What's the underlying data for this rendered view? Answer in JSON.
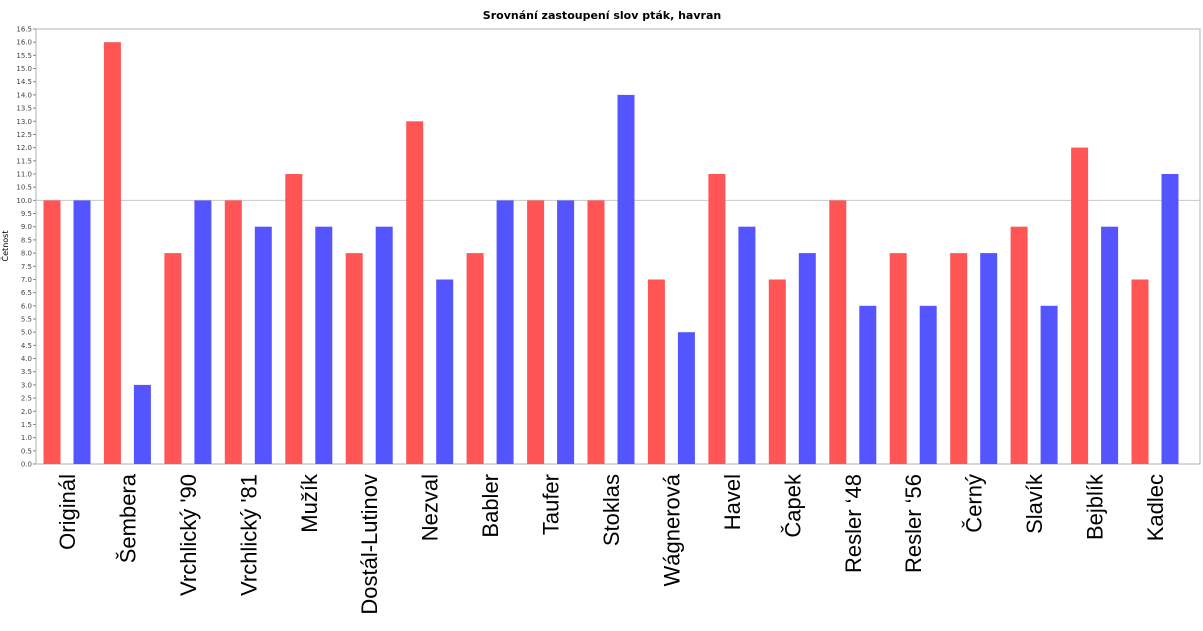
{
  "chart_data": {
    "type": "bar",
    "title": "Srovnání zastoupení slov pták, havran",
    "ylabel": "Četnost",
    "xlabel": "",
    "ylim": [
      0,
      16.5
    ],
    "ytick_step": 0.5,
    "reference_line": 10,
    "grid": false,
    "colors": {
      "ptak": "#ff5555",
      "havran": "#5555ff"
    },
    "categories": [
      "Originál",
      "Šembera",
      "Vrchlický '90",
      "Vrchlický '81",
      "Mužík",
      "Dostál-Lutinov",
      "Nezval",
      "Babler",
      "Taufer",
      "Stoklas",
      "Wágnerová",
      "Havel",
      "Čapek",
      "Resler ‘48",
      "Resler ‘56",
      "Černý",
      "Slavík",
      "Bejblík",
      "Kadlec"
    ],
    "series": [
      {
        "values": [
          10,
          16,
          8,
          10,
          11,
          8,
          13,
          8,
          10,
          10,
          7,
          11,
          7,
          10,
          8,
          8,
          9,
          12,
          7
        ]
      },
      {
        "values": [
          10,
          3,
          10,
          9,
          9,
          9,
          7,
          10,
          10,
          14,
          5,
          9,
          8,
          6,
          6,
          8,
          6,
          9,
          11
        ]
      }
    ]
  }
}
